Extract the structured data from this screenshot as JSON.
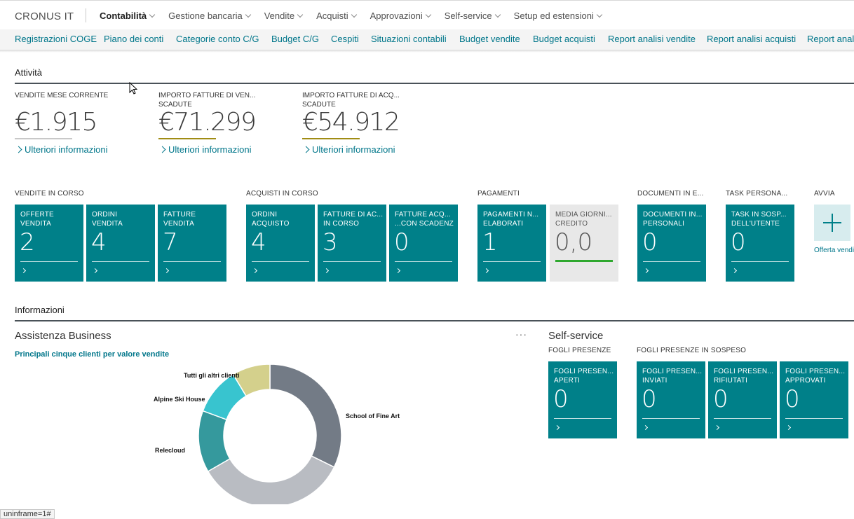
{
  "app": {
    "brand": "CRONUS IT"
  },
  "top_nav": [
    {
      "label": "Contabilità",
      "active": true
    },
    {
      "label": "Gestione bancaria"
    },
    {
      "label": "Vendite"
    },
    {
      "label": "Acquisti"
    },
    {
      "label": "Approvazioni"
    },
    {
      "label": "Self-service"
    },
    {
      "label": "Setup ed estensioni"
    }
  ],
  "sub_nav": [
    "Registrazioni COGE",
    "Piano dei conti",
    "Categorie conto C/G",
    "Budget C/G",
    "Cespiti",
    "Situazioni contabili",
    "Budget vendite",
    "Budget acquisti",
    "Report analisi vendite",
    "Report analisi acquisti",
    "Report analisi"
  ],
  "attivita": {
    "title": "Attività",
    "kpis": [
      {
        "caption1": "VENDITE MESE CORRENTE",
        "caption2": "",
        "value": "€1.915",
        "more": "Ulteriori informazioni",
        "bar_color": "#c8c8c8"
      },
      {
        "caption1": "IMPORTO FATTURE DI VEN...",
        "caption2": "SCADUTE",
        "value": "€71.299",
        "more": "Ulteriori informazioni",
        "bar_color": "#a08c14"
      },
      {
        "caption1": "IMPORTO FATTURE DI ACQ...",
        "caption2": "SCADUTE",
        "value": "€54.912",
        "more": "Ulteriori informazioni",
        "bar_color": "#a08c14"
      }
    ],
    "groups": {
      "vendite": "VENDITE IN CORSO",
      "acquisti": "ACQUISTI IN CORSO",
      "pagamenti": "PAGAMENTI",
      "documenti": "DOCUMENTI IN E...",
      "task": "TASK PERSONA...",
      "avvia": "AVVIA"
    },
    "tiles": [
      {
        "l1": "OFFERTE",
        "l2": "VENDITA",
        "value": "2"
      },
      {
        "l1": "ORDINI",
        "l2": "VENDITA",
        "value": "4"
      },
      {
        "l1": "FATTURE",
        "l2": "VENDITA",
        "value": "7"
      },
      {
        "l1": "ORDINI",
        "l2": "ACQUISTO",
        "value": "4"
      },
      {
        "l1": "FATTURE DI AC...",
        "l2": "IN CORSO",
        "value": "3"
      },
      {
        "l1": "FATTURE ACQ...",
        "l2": "...CON SCADENZ",
        "value": "0"
      },
      {
        "l1": "PAGAMENTI N...",
        "l2": "ELABORATI",
        "value": "1"
      },
      {
        "l1": "MEDIA GIORNI...",
        "l2": "CREDITO",
        "value": "0,0"
      },
      {
        "l1": "DOCUMENTI IN...",
        "l2": "PERSONALI",
        "value": "0"
      },
      {
        "l1": "TASK IN SOSP...",
        "l2": "DELL'UTENTE",
        "value": "0"
      }
    ],
    "avvia_label": "Offerta vendita"
  },
  "informazioni": {
    "title": "Informazioni",
    "assistenza": {
      "title": "Assistenza Business",
      "more": "···",
      "chart_subtitle": "Principali cinque clienti per valore vendite"
    },
    "self_service": {
      "title": "Self-service",
      "group1": "FOGLI PRESENZE",
      "group2": "FOGLI PRESENZE IN SOSPESO",
      "tiles": [
        {
          "l1": "FOGLI PRESEN...",
          "l2": "APERTI",
          "value": "0"
        },
        {
          "l1": "FOGLI PRESEN...",
          "l2": "INVIATI",
          "value": "0"
        },
        {
          "l1": "FOGLI PRESEN...",
          "l2": "RIFIUTATI",
          "value": "0"
        },
        {
          "l1": "FOGLI PRESEN...",
          "l2": "APPROVATI",
          "value": "0"
        }
      ]
    }
  },
  "chart_data": {
    "type": "pie",
    "title": "Principali cinque clienti per valore vendite",
    "donut": true,
    "labels": [
      "School of Fine Art",
      "",
      "Relecloud",
      "Alpine Ski House",
      "Tutti gli altri clienti"
    ],
    "values": [
      30,
      32,
      13,
      10,
      8
    ],
    "colors": [
      "#737b86",
      "#b9bcc2",
      "#35999d",
      "#38c4cf",
      "#d4d08c"
    ]
  },
  "status_text": "uninframe=1#"
}
